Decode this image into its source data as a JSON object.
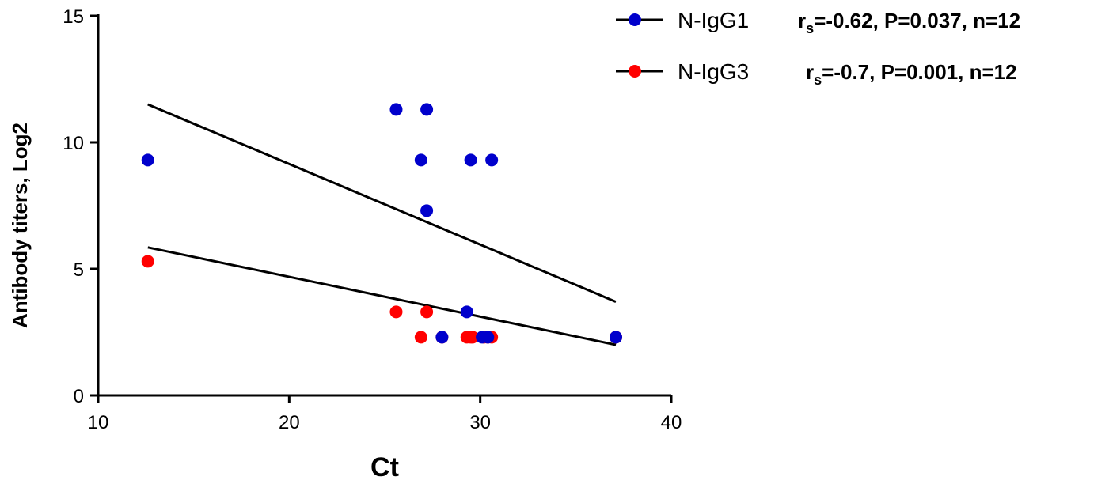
{
  "chart_data": {
    "type": "scatter",
    "xlabel": "Ct",
    "ylabel": "Antibody titers, Log2",
    "xlim": [
      10,
      40
    ],
    "ylim": [
      0,
      15
    ],
    "xticks": [
      10,
      20,
      30,
      40
    ],
    "yticks": [
      0,
      5,
      10,
      15
    ],
    "grid": false,
    "legend_position": "top-right",
    "series": [
      {
        "name": "N-IgG1",
        "color": "#0000cc",
        "stat_label": "=-0.62, P=0.037, n=12",
        "stat_symbol": "r",
        "stat_sub": "s",
        "points": [
          [
            12.6,
            9.3
          ],
          [
            25.6,
            11.3
          ],
          [
            27.2,
            11.3
          ],
          [
            26.9,
            9.3
          ],
          [
            29.5,
            9.3
          ],
          [
            30.6,
            9.3
          ],
          [
            27.2,
            7.3
          ],
          [
            29.3,
            3.3
          ],
          [
            28.0,
            2.3
          ],
          [
            30.1,
            2.3
          ],
          [
            30.4,
            2.3
          ],
          [
            37.1,
            2.3
          ]
        ],
        "fit": [
          [
            12.6,
            11.5
          ],
          [
            37.1,
            3.7
          ]
        ]
      },
      {
        "name": "N-IgG3",
        "color": "#ff0000",
        "stat_label": "=-0.7, P=0.001, n=12",
        "stat_symbol": "r",
        "stat_sub": "s",
        "points": [
          [
            12.6,
            5.3
          ],
          [
            25.6,
            3.3
          ],
          [
            27.2,
            3.3
          ],
          [
            26.9,
            2.3
          ],
          [
            29.3,
            2.3
          ],
          [
            29.6,
            2.3
          ],
          [
            30.2,
            2.3
          ],
          [
            30.6,
            2.3
          ],
          [
            28.0,
            2.3
          ],
          [
            29.5,
            2.3
          ],
          [
            30.4,
            2.3
          ],
          [
            37.1,
            2.3
          ]
        ],
        "fit": [
          [
            12.6,
            5.85
          ],
          [
            37.1,
            2.0
          ]
        ]
      }
    ]
  }
}
